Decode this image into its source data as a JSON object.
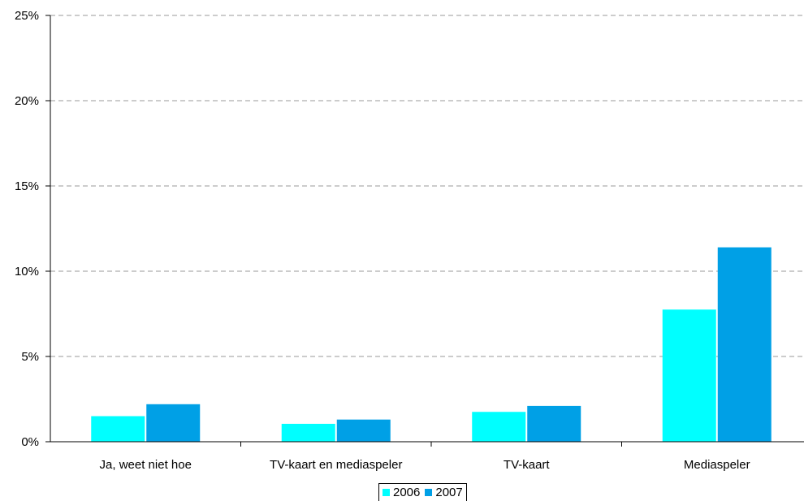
{
  "chart_data": {
    "type": "bar",
    "categories": [
      "Ja, weet niet hoe",
      "TV-kaart en mediaspeler",
      "TV-kaart",
      "Mediaspeler"
    ],
    "series": [
      {
        "name": "2006",
        "values": [
          1.5,
          1.05,
          1.75,
          7.75
        ],
        "color": "#00ffff"
      },
      {
        "name": "2007",
        "values": [
          2.2,
          1.3,
          2.1,
          11.4
        ],
        "color": "#00a0e6"
      }
    ],
    "y_ticks": [
      "0%",
      "5%",
      "10%",
      "15%",
      "20%",
      "25%"
    ],
    "y_tick_values": [
      0,
      5,
      10,
      15,
      20,
      25
    ],
    "ylim": [
      0,
      25
    ],
    "grid": true,
    "grid_style": "dashed",
    "legend_position": "bottom-center",
    "title": "",
    "xlabel": "",
    "ylabel": ""
  }
}
